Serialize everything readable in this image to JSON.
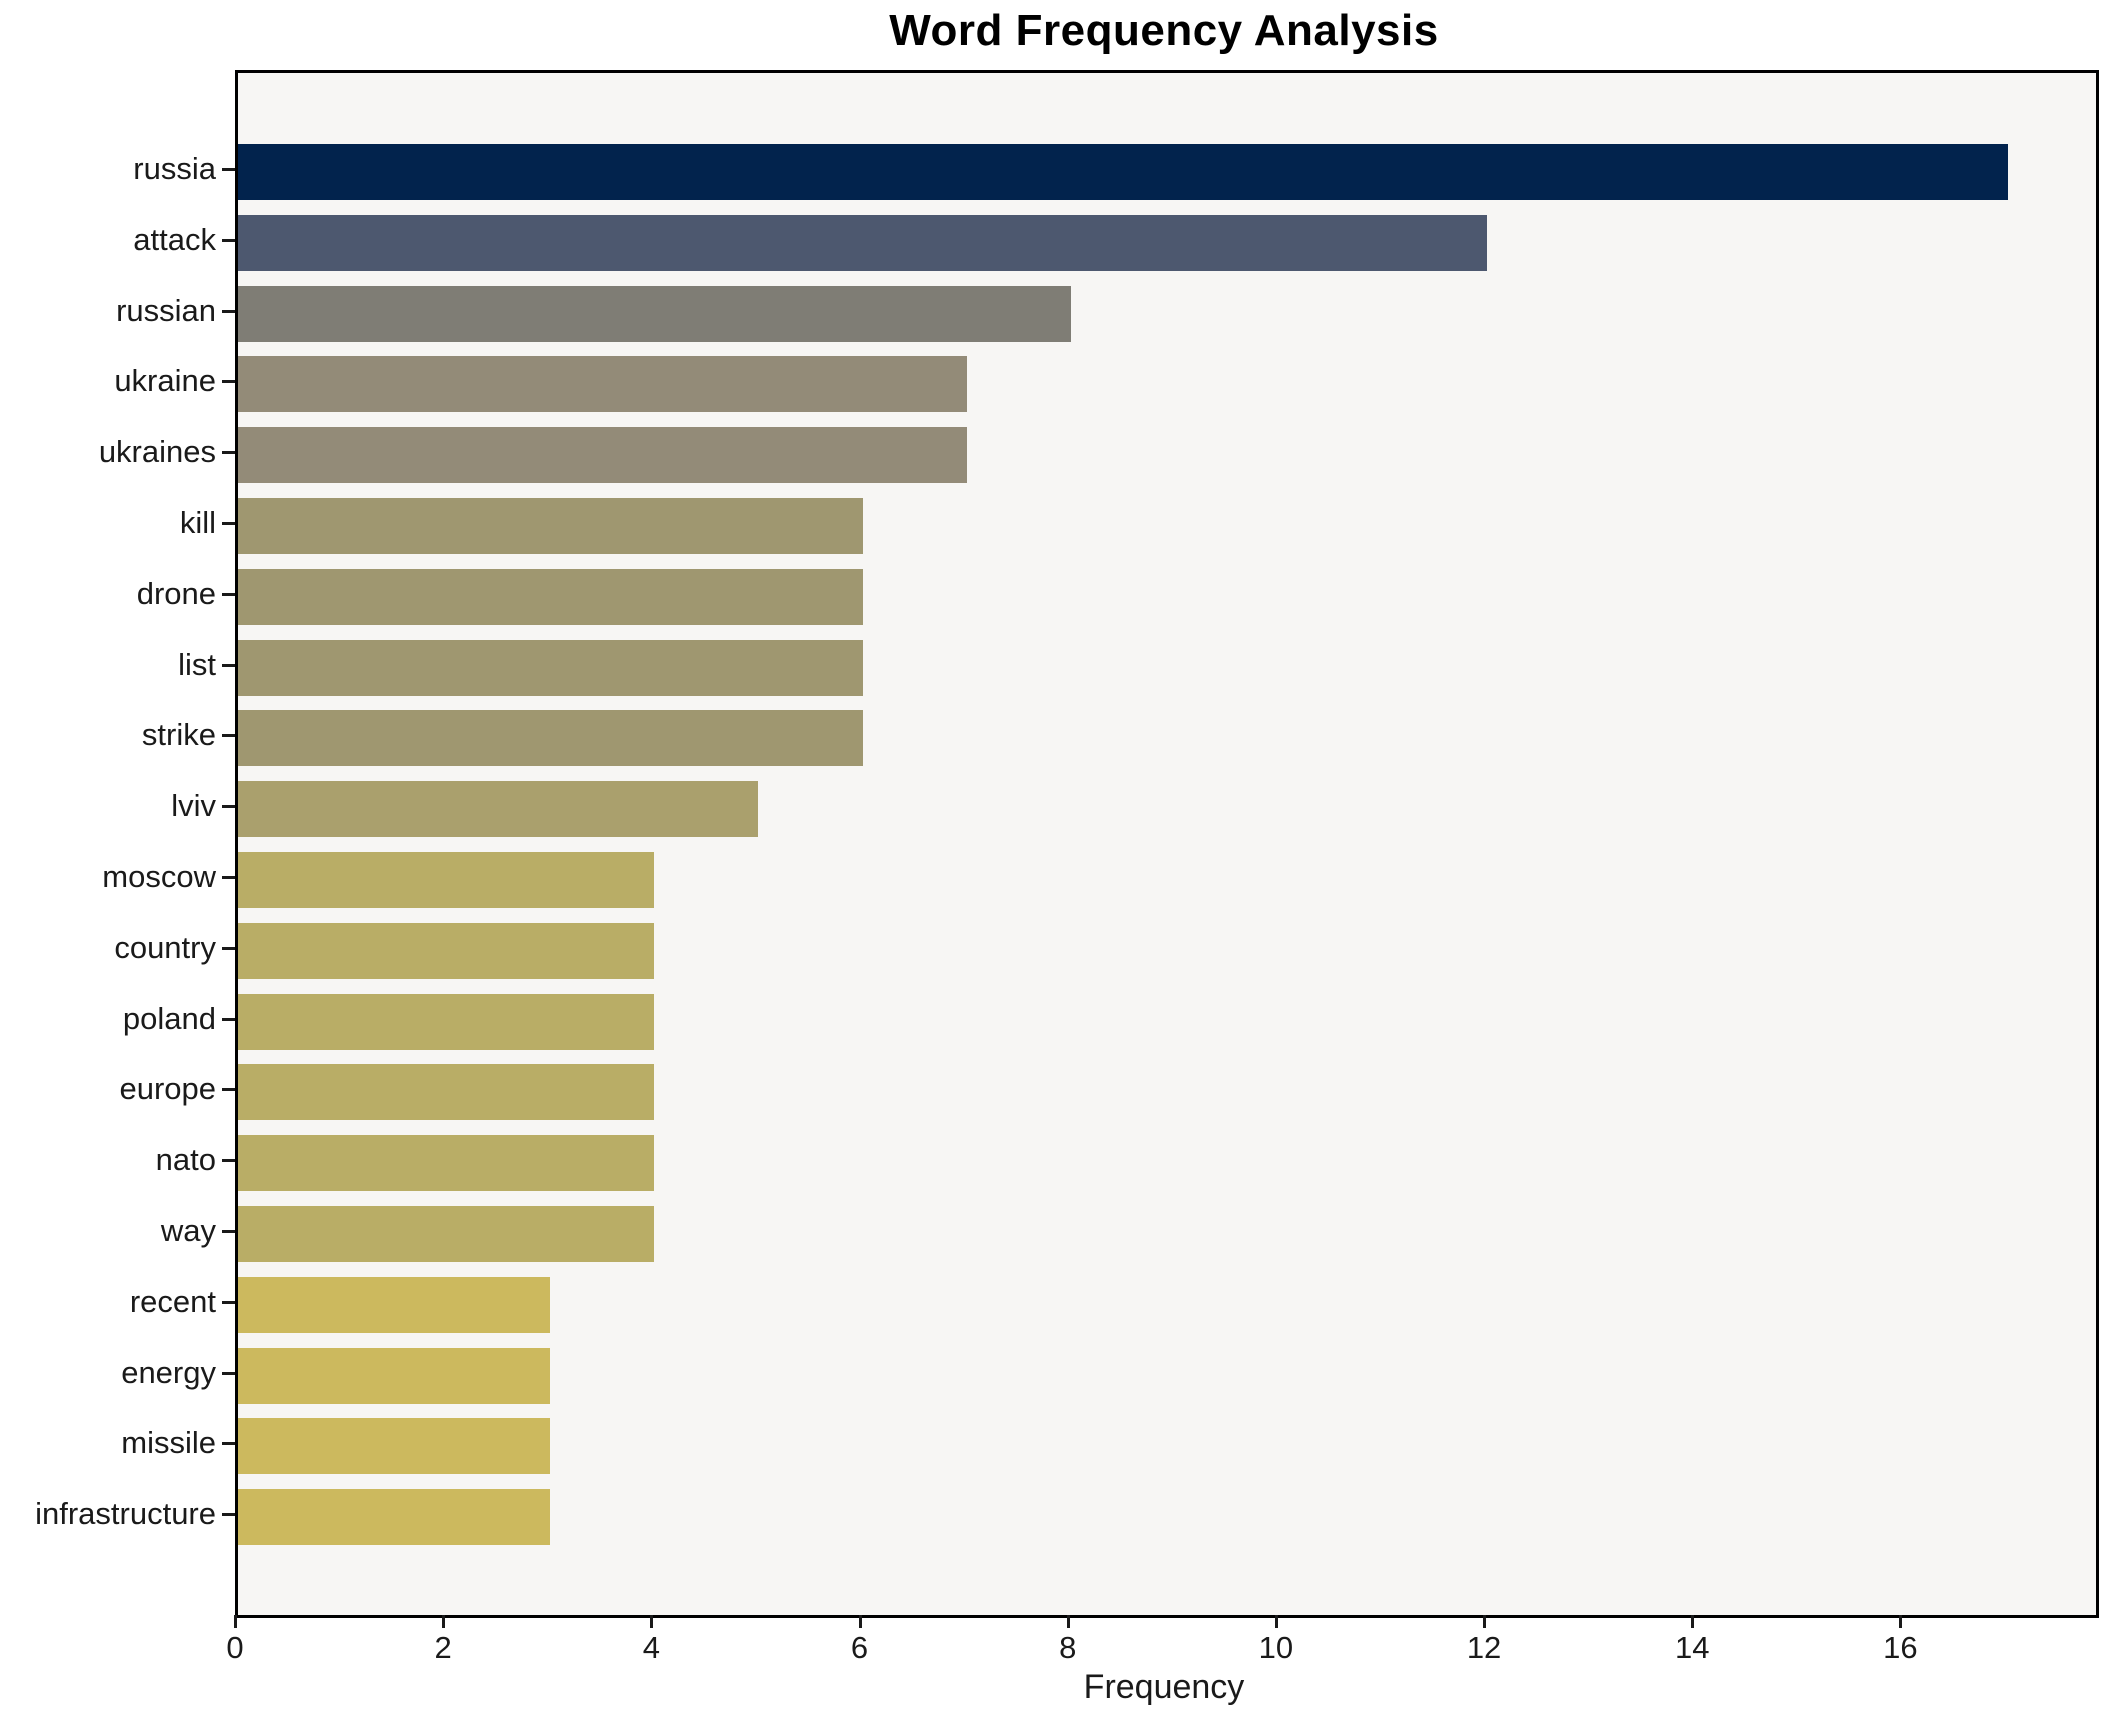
{
  "title": "Word Frequency Analysis",
  "chart_data": {
    "type": "bar",
    "orientation": "horizontal",
    "title": "Word Frequency Analysis",
    "xlabel": "Frequency",
    "ylabel": "",
    "categories": [
      "russia",
      "attack",
      "russian",
      "ukraine",
      "ukraines",
      "kill",
      "drone",
      "list",
      "strike",
      "lviv",
      "moscow",
      "country",
      "poland",
      "europe",
      "nato",
      "way",
      "recent",
      "energy",
      "missile",
      "infrastructure"
    ],
    "values": [
      17,
      12,
      8,
      7,
      7,
      6,
      6,
      6,
      6,
      5,
      4,
      4,
      4,
      4,
      4,
      4,
      3,
      3,
      3,
      3
    ],
    "bar_colors": [
      "#02234d",
      "#4d586f",
      "#7f7d75",
      "#938b78",
      "#938b78",
      "#9f9770",
      "#9f9770",
      "#9f9770",
      "#9f9770",
      "#aaa06d",
      "#b9ad66",
      "#b9ad66",
      "#b9ad66",
      "#b9ad66",
      "#b9ad66",
      "#b9ad66",
      "#ccb95e",
      "#ccb95e",
      "#ccb95e",
      "#ccb95e"
    ],
    "xlim": [
      0,
      17.85
    ],
    "xticks": [
      0,
      2,
      4,
      6,
      8,
      10,
      12,
      14,
      16
    ],
    "grid": false,
    "legend": null,
    "plot_background": "#f7f6f4",
    "figure_background": "#ffffff",
    "spine_color": "#000000"
  }
}
